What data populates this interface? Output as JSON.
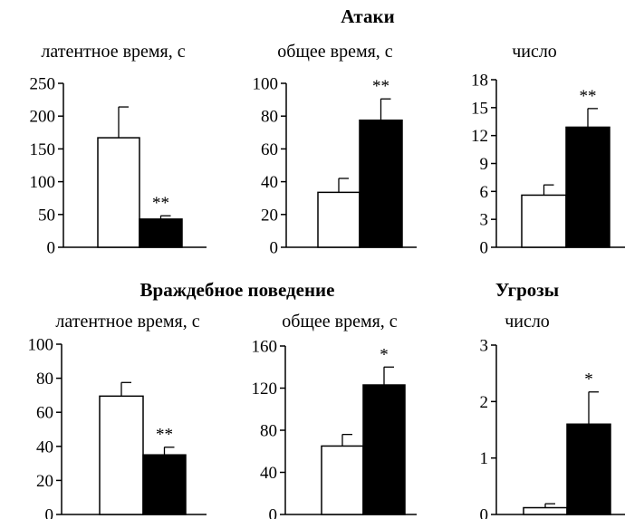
{
  "groups": {
    "top_title": "Атаки",
    "hostile_title": "Враждебное поведение",
    "threats_title": "Угрозы"
  },
  "chart_data": [
    {
      "type": "bar",
      "title": "латентное время, с",
      "categories": [
        "",
        ""
      ],
      "values": [
        167,
        43
      ],
      "errors": [
        47,
        5
      ],
      "significance": [
        "",
        "**"
      ],
      "ylim": [
        0,
        250
      ],
      "yticks": [
        "0",
        "50",
        "100",
        "150",
        "200",
        "250"
      ],
      "bar_colors": [
        "#ffffff",
        "#000000"
      ]
    },
    {
      "type": "bar",
      "title": "общее время, с",
      "categories": [
        "",
        ""
      ],
      "values": [
        33.5,
        77.5
      ],
      "errors": [
        8.5,
        13
      ],
      "significance": [
        "",
        "**"
      ],
      "ylim": [
        0,
        100
      ],
      "yticks": [
        "0",
        "20",
        "40",
        "60",
        "80",
        "100"
      ],
      "bar_colors": [
        "#ffffff",
        "#000000"
      ]
    },
    {
      "type": "bar",
      "title": "число",
      "categories": [
        "",
        ""
      ],
      "values": [
        5.6,
        12.9
      ],
      "errors": [
        1.1,
        2.0
      ],
      "significance": [
        "",
        "**"
      ],
      "ylim": [
        0,
        18
      ],
      "yticks": [
        "0",
        "3",
        "6",
        "9",
        "12",
        "15",
        "18"
      ],
      "bar_colors": [
        "#ffffff",
        "#000000"
      ]
    },
    {
      "type": "bar",
      "title": "латентное время, с",
      "categories": [
        "",
        ""
      ],
      "values": [
        69.5,
        35
      ],
      "errors": [
        8,
        4.5
      ],
      "significance": [
        "",
        "**"
      ],
      "ylim": [
        0,
        100
      ],
      "yticks": [
        "0",
        "20",
        "40",
        "60",
        "80",
        "100"
      ],
      "bar_colors": [
        "#ffffff",
        "#000000"
      ]
    },
    {
      "type": "bar",
      "title": "общее время, с",
      "categories": [
        "",
        ""
      ],
      "values": [
        65,
        123
      ],
      "errors": [
        11,
        17
      ],
      "significance": [
        "",
        "*"
      ],
      "ylim": [
        0,
        160
      ],
      "yticks": [
        "0",
        "40",
        "80",
        "120",
        "160"
      ],
      "bar_colors": [
        "#ffffff",
        "#000000"
      ]
    },
    {
      "type": "bar",
      "title": "число",
      "categories": [
        "",
        ""
      ],
      "values": [
        0.12,
        1.6
      ],
      "errors": [
        0.07,
        0.57
      ],
      "significance": [
        "",
        "*"
      ],
      "ylim": [
        0,
        3
      ],
      "yticks": [
        "0",
        "1",
        "2",
        "3"
      ],
      "bar_colors": [
        "#ffffff",
        "#000000"
      ]
    }
  ]
}
